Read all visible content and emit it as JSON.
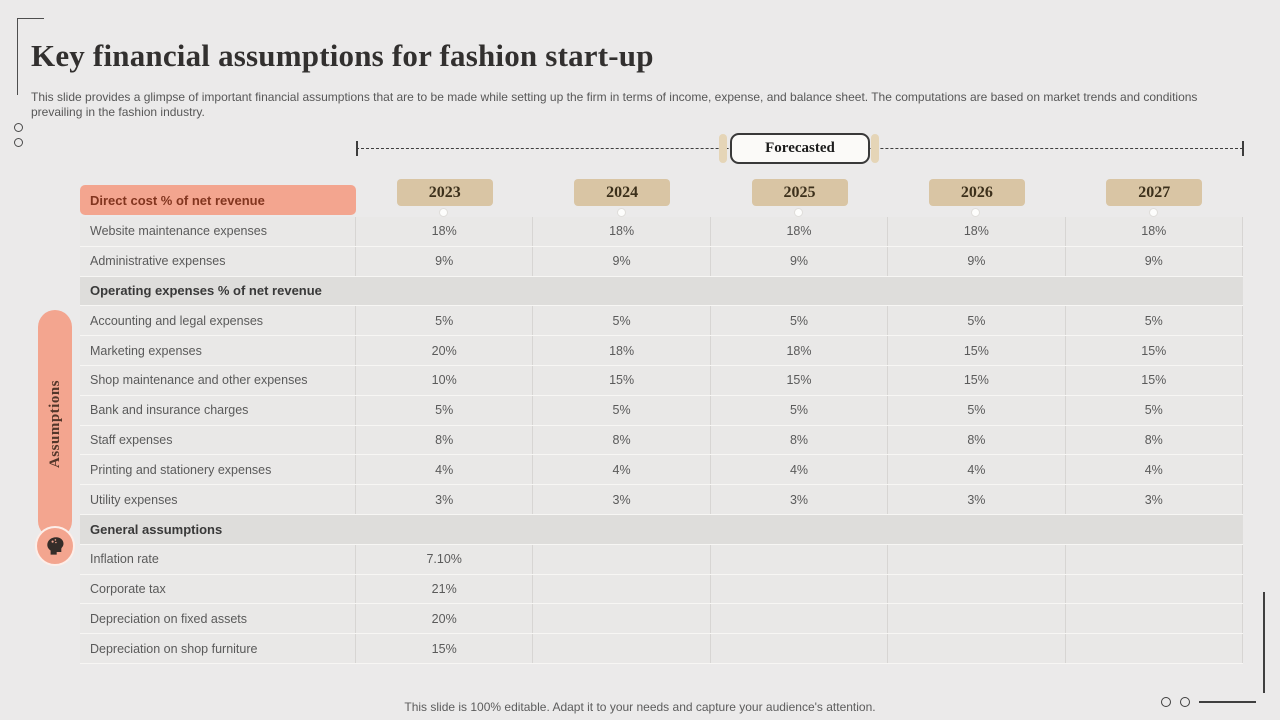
{
  "slide": {
    "title": "Key financial assumptions for fashion start-up",
    "subtitle": "This slide provides a glimpse of important financial assumptions that are to be made while setting up the firm in terms of income, expense, and balance sheet. The computations are based on market trends and conditions prevailing in the fashion industry.",
    "footer": "This slide is 100% editable. Adapt it to your needs and capture your audience's attention."
  },
  "timeline": {
    "label": "Forecasted"
  },
  "sidebar": {
    "label": "Assumptions",
    "icon": "thinking-head-icon"
  },
  "table": {
    "header": "Direct cost % of net revenue",
    "years": [
      "2023",
      "2024",
      "2025",
      "2026",
      "2027"
    ],
    "rows": [
      {
        "label": "Website maintenance expenses",
        "type": "data",
        "values": [
          "18%",
          "18%",
          "18%",
          "18%",
          "18%"
        ]
      },
      {
        "label": "Administrative expenses",
        "type": "data",
        "values": [
          "9%",
          "9%",
          "9%",
          "9%",
          "9%"
        ]
      },
      {
        "label": "Operating expenses % of net revenue",
        "type": "section",
        "values": [
          "",
          "",
          "",
          "",
          ""
        ]
      },
      {
        "label": "Accounting and legal expenses",
        "type": "data",
        "values": [
          "5%",
          "5%",
          "5%",
          "5%",
          "5%"
        ]
      },
      {
        "label": "Marketing expenses",
        "type": "data",
        "values": [
          "20%",
          "18%",
          "18%",
          "15%",
          "15%"
        ]
      },
      {
        "label": "Shop maintenance and other expenses",
        "type": "data",
        "values": [
          "10%",
          "15%",
          "15%",
          "15%",
          "15%"
        ]
      },
      {
        "label": "Bank and insurance charges",
        "type": "data",
        "values": [
          "5%",
          "5%",
          "5%",
          "5%",
          "5%"
        ]
      },
      {
        "label": "Staff expenses",
        "type": "data",
        "values": [
          "8%",
          "8%",
          "8%",
          "8%",
          "8%"
        ]
      },
      {
        "label": "Printing and stationery expenses",
        "type": "data",
        "values": [
          "4%",
          "4%",
          "4%",
          "4%",
          "4%"
        ]
      },
      {
        "label": "Utility expenses",
        "type": "data",
        "values": [
          "3%",
          "3%",
          "3%",
          "3%",
          "3%"
        ]
      },
      {
        "label": "General assumptions",
        "type": "section",
        "values": [
          "",
          "",
          "",
          "",
          ""
        ]
      },
      {
        "label": "Inflation rate",
        "type": "data",
        "values": [
          "7.10%",
          "",
          "",
          "",
          ""
        ]
      },
      {
        "label": "Corporate tax",
        "type": "data",
        "values": [
          "21%",
          "",
          "",
          "",
          ""
        ]
      },
      {
        "label": "Depreciation on fixed assets",
        "type": "data",
        "values": [
          "20%",
          "",
          "",
          "",
          ""
        ]
      },
      {
        "label": "Depreciation on shop furniture",
        "type": "data",
        "values": [
          "15%",
          "",
          "",
          "",
          ""
        ]
      }
    ]
  },
  "colors": {
    "accent_salmon": "#f3a58f",
    "accent_tan": "#d9c5a4",
    "background": "#ebeaea",
    "header_text": "#82351f",
    "body_text": "#5a5a5a"
  }
}
